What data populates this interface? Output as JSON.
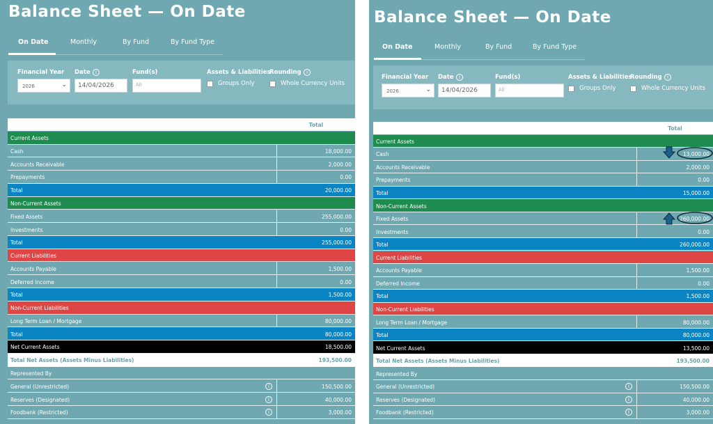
{
  "panels": [
    {
      "title": "Balance Sheet — On Date",
      "tabs": [
        "On Date",
        "Monthly",
        "By Fund",
        "By Fund Type"
      ],
      "filters": [
        {
          "label": "Financial Year",
          "value": "2026"
        },
        {
          "label": "Date",
          "value": "14/04/2026"
        },
        {
          "label": "Fund(s)",
          "value": "All"
        },
        {
          "label": "Assets & Liabilities",
          "value": "Groups Only"
        },
        {
          "label": "Rounding",
          "value": "Whole Currency Units"
        }
      ],
      "table": {
        "column": "Total",
        "rows": [
          {
            "label": "Current Assets",
            "fill": "#1d8c4e"
          },
          {
            "label": "Cash",
            "value": "18,000.00"
          },
          {
            "label": "Accounts Receivable",
            "value": "2,000.00"
          },
          {
            "label": "Prepayments",
            "value": "0.00"
          },
          {
            "label": "Total",
            "value": "20,000.00",
            "fill": "#0a84c2"
          },
          {
            "label": "Non-Current Assets",
            "fill": "#1d8c4e"
          },
          {
            "label": "Fixed Assets",
            "value": "255,000.00"
          },
          {
            "label": "Investments",
            "value": "0.00"
          },
          {
            "label": "Total",
            "value": "255,000.00",
            "fill": "#0a84c2"
          },
          {
            "label": "Current Liabilities",
            "fill": "#dd4644"
          },
          {
            "label": "Accounts Payable",
            "value": "1,500.00"
          },
          {
            "label": "Deferred Income",
            "value": "0.00"
          },
          {
            "label": "Total",
            "value": "1,500.00",
            "fill": "#0a84c2"
          },
          {
            "label": "Non-Current Liabilities",
            "fill": "#dd4644"
          },
          {
            "label": "Long Term Loan / Mortgage",
            "value": "80,000.00"
          },
          {
            "label": "Total",
            "value": "80,000.00",
            "fill": "#0a84c2"
          },
          {
            "label": "Net Current Assets",
            "value": "18,500.00",
            "fill": "#000000"
          }
        ],
        "total_net_assets": {
          "label": "Total Net Assets (Assets Minus Liabilities)",
          "value": "193,500.00"
        },
        "represented_by": {
          "label": "Represented By",
          "rows": [
            {
              "label": "General (Unrestricted)",
              "value": "150,500.00"
            },
            {
              "label": "Reserves (Designated)",
              "value": "40,000.00"
            },
            {
              "label": "Foodbank (Restricted)",
              "value": "3,000.00"
            }
          ]
        }
      }
    },
    {
      "title": "Balance Sheet — On Date",
      "tabs": [
        "On Date",
        "Monthly",
        "By Fund",
        "By Fund Type"
      ],
      "filters": [
        {
          "label": "Financial Year",
          "value": "2026"
        },
        {
          "label": "Date",
          "value": "14/04/2026"
        },
        {
          "label": "Fund(s)",
          "value": "All"
        },
        {
          "label": "Assets & Liabilities",
          "value": "Groups Only"
        },
        {
          "label": "Rounding",
          "value": "Whole Currency Units"
        }
      ],
      "table": {
        "column": "Total",
        "rows": [
          {
            "label": "Current Assets",
            "fill": "#1d8c4e"
          },
          {
            "label": "Cash",
            "value": "13,000.00"
          },
          {
            "label": "Accounts Receivable",
            "value": "2,000.00"
          },
          {
            "label": "Prepayments",
            "value": "0.00"
          },
          {
            "label": "Total",
            "value": "15,000.00",
            "fill": "#0a84c2"
          },
          {
            "label": "Non-Current Assets",
            "fill": "#1d8c4e"
          },
          {
            "label": "Fixed Assets",
            "value": "260,000.00"
          },
          {
            "label": "Investments",
            "value": "0.00"
          },
          {
            "label": "Total",
            "value": "260,000.00",
            "fill": "#0a84c2"
          },
          {
            "label": "Current Liabilities",
            "fill": "#dd4644"
          },
          {
            "label": "Accounts Payable",
            "value": "1,500.00"
          },
          {
            "label": "Deferred Income",
            "value": "0.00"
          },
          {
            "label": "Total",
            "value": "1,500.00",
            "fill": "#0a84c2"
          },
          {
            "label": "Non-Current Liabilities",
            "fill": "#dd4644"
          },
          {
            "label": "Long Term Loan / Mortgage",
            "value": "80,000.00"
          },
          {
            "label": "Total",
            "value": "80,000.00",
            "fill": "#0a84c2"
          },
          {
            "label": "Net Current Assets",
            "value": "13,500.00",
            "fill": "#000000"
          }
        ],
        "total_net_assets": {
          "label": "Total Net Assets (Assets Minus Liabilities)",
          "value": "193,500.00"
        },
        "represented_by": {
          "label": "Represented By",
          "rows": [
            {
              "label": "General (Unrestricted)",
              "value": "150,500.00"
            },
            {
              "label": "Reserves (Designated)",
              "value": "40,000.00"
            },
            {
              "label": "Foodbank (Restricted)",
              "value": "3,000.00"
            }
          ]
        }
      }
    }
  ]
}
